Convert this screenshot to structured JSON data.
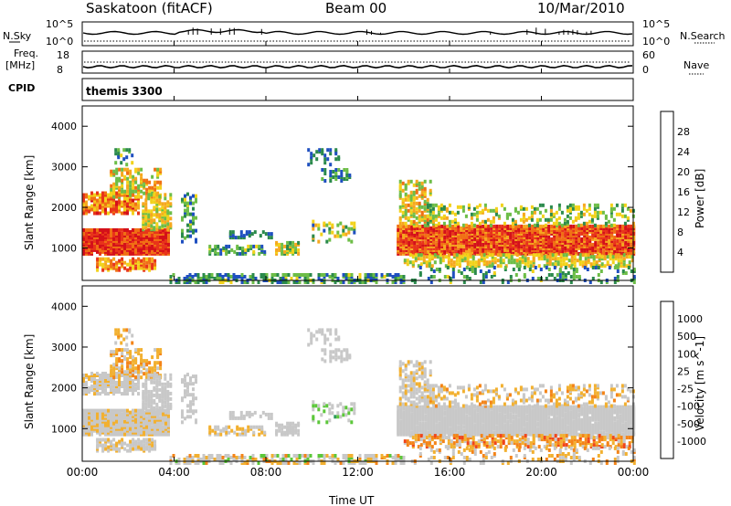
{
  "header": {
    "title": "Saskatoon (fitACF)",
    "beam": "Beam 00",
    "date": "10/Mar/2010"
  },
  "params": {
    "nsky_label": "N.Sky",
    "nsky_ticks": [
      "10^5",
      "10^0"
    ],
    "nsearch_label": "N.Search",
    "nsearch_ticks": [
      "10^5",
      "10^0"
    ],
    "freq_label_1": "Freq.",
    "freq_label_2": "[MHz]",
    "freq_ticks": [
      "18",
      "8"
    ],
    "nave_label": "Nave",
    "nave_ticks": [
      "60",
      "0"
    ],
    "cpid_label": "CPID",
    "cpid_value": "themis 3300"
  },
  "colors": {
    "power": [
      "#0a12ff",
      "#1f4fc0",
      "#2b8a4c",
      "#6dbd47",
      "#f2d21a",
      "#f6a81e",
      "#f07014",
      "#e8341a",
      "#d4101a"
    ],
    "velocity": [
      "#e8141a",
      "#f0451a",
      "#f48418",
      "#f2b030",
      "#c8c8c8",
      "#c8c8c8",
      "#5cc83a",
      "#2f9a5a",
      "#2545b0",
      "#1a1ae0"
    ]
  },
  "chart_data": [
    {
      "type": "heatmap",
      "name": "power",
      "ylabel": "Slant Range [km]",
      "yticks": [
        "1000",
        "2000",
        "3000",
        "4000"
      ],
      "ylim": [
        200,
        4500
      ],
      "xlim_hours": [
        0,
        24
      ],
      "colorbar_label": "Power [dB]",
      "colorbar_ticks": [
        "4",
        "8",
        "12",
        "16",
        "20",
        "24",
        "28"
      ],
      "colorbar_range": [
        0,
        30
      ]
    },
    {
      "type": "heatmap",
      "name": "velocity",
      "ylabel": "Slant Range [km]",
      "yticks": [
        "1000",
        "2000",
        "3000",
        "4000"
      ],
      "ylim": [
        200,
        4500
      ],
      "xlim_hours": [
        0,
        24
      ],
      "colorbar_label": "Velocity [m s^-1]",
      "colorbar_ticks": [
        "1000",
        "500",
        "100",
        "25",
        "-25",
        "-100",
        "-500",
        "-1000"
      ]
    }
  ],
  "xaxis": {
    "ticks": [
      "00:00",
      "04:00",
      "08:00",
      "12:00",
      "16:00",
      "20:00",
      "00:00"
    ],
    "label": "Time UT"
  }
}
